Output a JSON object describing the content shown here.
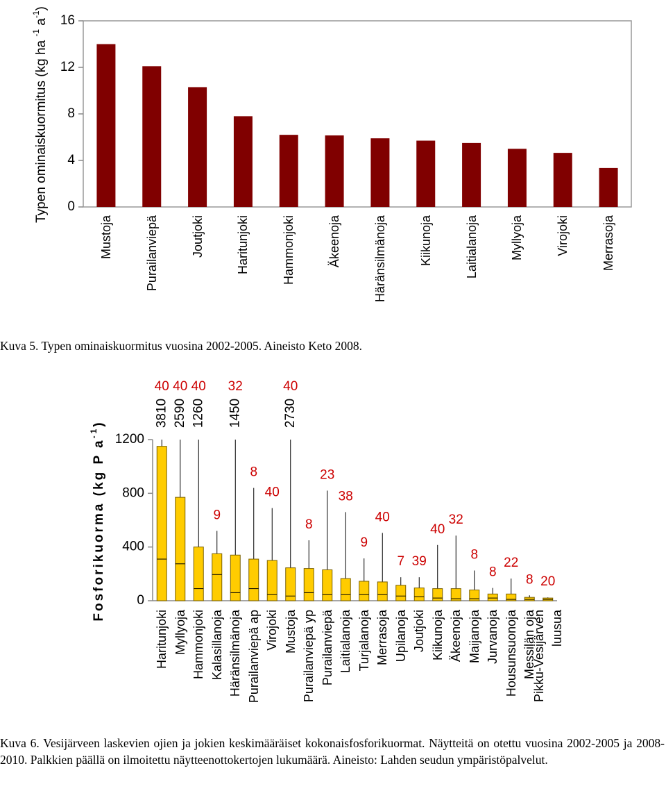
{
  "chart_data": [
    {
      "type": "bar",
      "y_label": [
        "Typen ominaiskuormitus (kg ha ",
        "-1",
        " a",
        "-1",
        ")"
      ],
      "categories": [
        "Mustoja",
        "Purailanviepä",
        "Joutjoki",
        "Haritunjoki",
        "Hammonjoki",
        "Äkeenoja",
        "Häränsilmänoja",
        "Kiikunoja",
        "Laitialanoja",
        "Myllyoja",
        "Virojoki",
        "Merrasoja"
      ],
      "values": [
        14.0,
        12.1,
        10.3,
        7.8,
        6.2,
        6.15,
        5.9,
        5.7,
        5.5,
        5.0,
        4.65,
        3.35
      ],
      "color": "#800000",
      "ylim": [
        0,
        16
      ],
      "yticks": [
        0,
        4,
        8,
        12,
        16
      ],
      "caption": "Kuva 5. Typen ominaiskuormitus vuosina 2002-2005. Aineisto Keto 2008."
    },
    {
      "type": "rangebar",
      "y_label": [
        "Fosforikuorma (kg P a",
        "-1",
        ")"
      ],
      "categories": [
        "Haritunjoki",
        "Myllyoja",
        "Hammonjoki",
        "Kalasillanoja",
        "Häränsilmänoja",
        "Purailanviepä ap",
        "Virojoki",
        "Mustoja",
        "Purailanviepä yp",
        "Purailanviepä",
        "Laitialanoja",
        "Turjalanoja",
        "Merrasoja",
        "Upilanoja",
        "Joutjoki",
        "Kiikunoja",
        "Äkeenoja",
        "Maijanoja",
        "Jurvanoja",
        "Housunsuonoja",
        "Messilän oja",
        "Pikku-Vesijärven luusua"
      ],
      "values": [
        1150,
        770,
        400,
        350,
        340,
        310,
        300,
        245,
        240,
        230,
        165,
        145,
        140,
        115,
        95,
        90,
        90,
        80,
        50,
        50,
        25,
        20
      ],
      "inner_line": [
        310,
        275,
        90,
        195,
        60,
        90,
        45,
        35,
        60,
        45,
        45,
        45,
        45,
        35,
        30,
        20,
        15,
        15,
        20,
        10,
        10,
        10
      ],
      "whisker_max": [
        3810,
        2590,
        1260,
        520,
        1450,
        840,
        690,
        2730,
        450,
        820,
        660,
        315,
        505,
        175,
        175,
        415,
        485,
        225,
        95,
        165,
        40,
        25
      ],
      "counts": [
        40,
        40,
        40,
        9,
        32,
        8,
        40,
        40,
        8,
        23,
        38,
        9,
        40,
        7,
        39,
        40,
        32,
        8,
        8,
        22,
        8,
        20
      ],
      "color": "#ffcc00",
      "count_color": "#cc0000",
      "ylim": [
        0,
        1200
      ],
      "yticks": [
        0,
        400,
        800,
        1200
      ],
      "caption": "Kuva 6. Vesijärveen laskevien ojien ja jokien keskimääräiset kokonaisfosforikuormat. Näytteitä on otettu vuosina 2002-2005 ja 2008-2010. Palkkien päällä on ilmoitettu näytteenottokertojen lukumäärä. Aineisto: Lahden seudun ympäristöpalvelut."
    }
  ]
}
